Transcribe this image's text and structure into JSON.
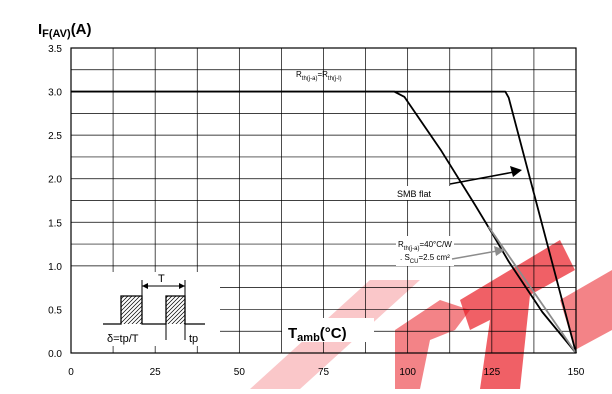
{
  "chart_data": {
    "type": "line",
    "title": {
      "main": "I",
      "sub": "F(AV)",
      "unit": "(A)"
    },
    "xlabel": {
      "main": "T",
      "sub": "amb",
      "unit": "(°C)"
    },
    "xlim": [
      0,
      150
    ],
    "ylim": [
      0,
      3.5
    ],
    "x_ticks": [
      0,
      25,
      50,
      75,
      100,
      125,
      150
    ],
    "y_ticks": [
      "0.0",
      "0.5",
      "1.0",
      "1.5",
      "2.0",
      "2.5",
      "3.0",
      "3.5"
    ],
    "grid": true,
    "series": [
      {
        "name": "Rth(j-a)=Rth(j-l)",
        "color": "#000000",
        "points": [
          [
            0,
            3.0
          ],
          [
            129,
            3.0
          ],
          [
            130,
            2.93
          ],
          [
            150,
            0
          ]
        ]
      },
      {
        "name": "Rth(j-a)=40°C/W . SCU=2.5 cm²",
        "color": "#000000",
        "points": [
          [
            0,
            3.0
          ],
          [
            96,
            3.0
          ],
          [
            99,
            2.94
          ],
          [
            110,
            2.32
          ],
          [
            120,
            1.7
          ],
          [
            125,
            1.38
          ],
          [
            130,
            1.05
          ],
          [
            140,
            0.47
          ],
          [
            150,
            0
          ]
        ]
      },
      {
        "name": "SMB flat",
        "color": "#909090",
        "points": [
          [
            124,
            1.45
          ],
          [
            150,
            0
          ]
        ]
      }
    ],
    "annotations": [
      {
        "name": "rth-jl-label",
        "parts": [
          [
            "R",
            "n"
          ],
          [
            "th(j-a)",
            "s"
          ],
          [
            "=R",
            "n"
          ],
          [
            "th(j-l)",
            "s"
          ]
        ]
      },
      {
        "name": "smb-flat-label",
        "text": "SMB flat"
      },
      {
        "name": "rth-40-label",
        "line1": [
          [
            "R",
            "n"
          ],
          [
            "th(j-a)",
            "s"
          ],
          [
            "=40°C/W",
            "n"
          ]
        ],
        "line2": [
          [
            ". S",
            "n"
          ],
          [
            "CU",
            "s"
          ],
          [
            "=2.5 cm²",
            "n"
          ]
        ]
      }
    ],
    "inset": {
      "period_label": "T",
      "duty_label": "δ=tp/T",
      "pulse_label": "tp"
    },
    "watermark_text": "ST"
  },
  "colors": {
    "grid": "#000000",
    "curve": "#000000",
    "smb": "#8c8c8c",
    "watermark": "#e8101a"
  }
}
